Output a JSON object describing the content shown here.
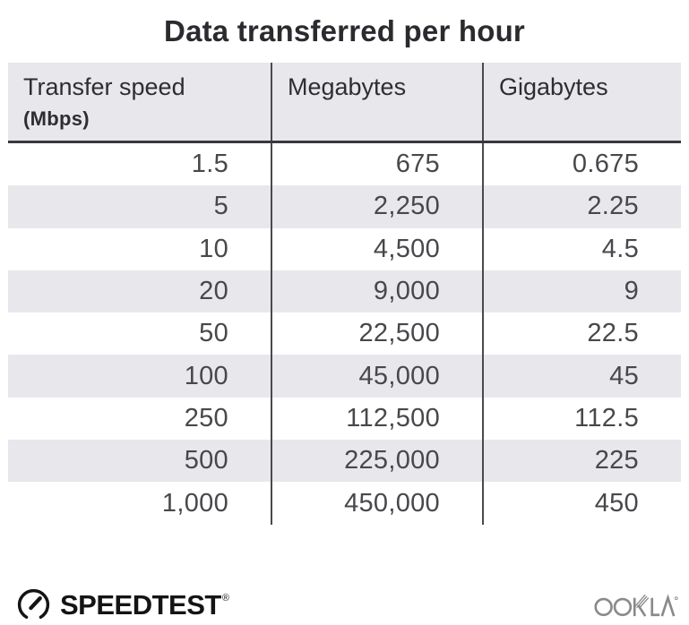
{
  "title": "Data transferred per hour",
  "table": {
    "headers": [
      {
        "label": "Transfer speed",
        "sublabel": "(Mbps)"
      },
      {
        "label": "Megabytes"
      },
      {
        "label": "Gigabytes"
      }
    ],
    "rows": [
      [
        "1.5",
        "675",
        "0.675"
      ],
      [
        "5",
        "2,250",
        "2.25"
      ],
      [
        "10",
        "4,500",
        "4.5"
      ],
      [
        "20",
        "9,000",
        "9"
      ],
      [
        "50",
        "22,500",
        "22.5"
      ],
      [
        "100",
        "45,000",
        "45"
      ],
      [
        "250",
        "112,500",
        "112.5"
      ],
      [
        "500",
        "225,000",
        "225"
      ],
      [
        "1,000",
        "450,000",
        "450"
      ]
    ]
  },
  "chart_data": {
    "type": "table",
    "title": "Data transferred per hour",
    "columns": [
      "Transfer speed (Mbps)",
      "Megabytes",
      "Gigabytes"
    ],
    "rows": [
      [
        1.5,
        675,
        0.675
      ],
      [
        5,
        2250,
        2.25
      ],
      [
        10,
        4500,
        4.5
      ],
      [
        20,
        9000,
        9
      ],
      [
        50,
        22500,
        22.5
      ],
      [
        100,
        45000,
        45
      ],
      [
        250,
        112500,
        112.5
      ],
      [
        500,
        225000,
        225
      ],
      [
        1000,
        450000,
        450
      ]
    ],
    "layout_hints": {
      "striped_rows": true,
      "column_dividers": true,
      "numbers_right_aligned": true
    }
  },
  "footer": {
    "brand": "SPEEDTEST",
    "brand_mark": "®",
    "attribution": "OOKLA"
  },
  "icons": {
    "gauge": "speedtest-gauge-icon",
    "ookla_wordmark": "ookla-wordmark-icon"
  },
  "colors": {
    "stripe": "#e8e7eb",
    "header_bg": "#e8e7eb",
    "divider": "#4a494e",
    "header_rule": "#39383d",
    "title_text": "#2b2a2e",
    "number_text": "#48474b",
    "brand_black": "#141414",
    "ookla_gray": "#8a8a8a"
  }
}
